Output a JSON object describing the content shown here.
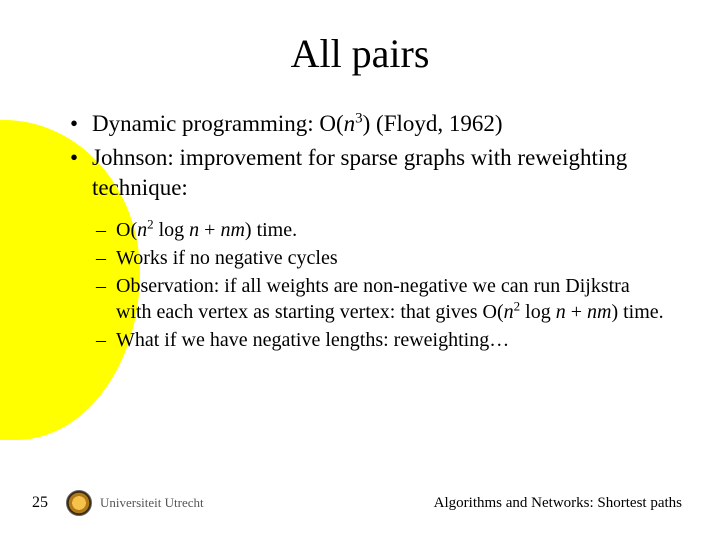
{
  "slide": {
    "title": "All pairs",
    "bullets": [
      {
        "prefix": "Dynamic programming: O(",
        "var1": "n",
        "sup1": "3",
        "suffix": ") (Floyd, 1962)"
      },
      {
        "text": "Johnson: improvement for sparse graphs with reweighting technique:"
      }
    ],
    "sub_bullets": [
      {
        "p1": "O(",
        "v1": "n",
        "s1": "2",
        "p2": " log ",
        "v2": "n",
        "p3": " + ",
        "v3": "nm",
        "p4": ") time."
      },
      {
        "text": "Works if no negative cycles"
      },
      {
        "p1": "Observation: if all weights are non-negative we can run Dijkstra with each vertex as starting vertex: that gives O(",
        "v1": "n",
        "s1": "2",
        "p2": " log ",
        "v2": "n",
        "p3": " + ",
        "v3": "nm",
        "p4": ") time."
      },
      {
        "text": "What if we have negative lengths: reweighting…"
      }
    ]
  },
  "footer": {
    "page_number": "25",
    "institution": "Universiteit Utrecht",
    "course": "Algorithms and Networks: Shortest paths"
  },
  "colors": {
    "background": "#ffffff",
    "accent_blob": "#ffff00",
    "text": "#000000",
    "logo_text": "#555555"
  },
  "typography": {
    "title_fontsize_pt": 40,
    "bullet_fontsize_pt": 23,
    "sub_bullet_fontsize_pt": 20,
    "footer_fontsize_pt": 15,
    "font_family": "Times New Roman"
  }
}
